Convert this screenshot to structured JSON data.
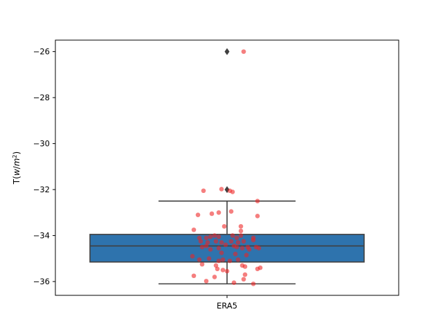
{
  "chart_data": {
    "type": "box",
    "categories": [
      "ERA5"
    ],
    "ylabel": "T(w/m²)",
    "ylabel_parts": [
      "T(",
      "w",
      "/",
      "m",
      "2",
      ")"
    ],
    "xlabel": "",
    "title": "",
    "ylim": [
      -36.6,
      -25.5
    ],
    "yticks": [
      -36,
      -34,
      -32,
      -30,
      -28,
      -26
    ],
    "ytick_labels": [
      "−36",
      "−34",
      "−32",
      "−30",
      "−28",
      "−26"
    ],
    "grid": false,
    "box": {
      "category": "ERA5",
      "q1": -35.15,
      "median": -34.45,
      "q3": -33.95,
      "whisker_low": -36.1,
      "whisker_high": -32.5,
      "outliers": [
        -26.0,
        -32.0
      ],
      "box_color": "#2e73ad",
      "line_color": "#3f3f3f"
    },
    "strip_color": "#ee2222",
    "strip_points": [
      {
        "x": 0.12,
        "y": -26.0
      },
      {
        "x": -0.17,
        "y": -32.05
      },
      {
        "x": -0.04,
        "y": -31.98
      },
      {
        "x": 0.02,
        "y": -32.05
      },
      {
        "x": 0.04,
        "y": -32.1
      },
      {
        "x": 0.22,
        "y": -32.5
      },
      {
        "x": -0.21,
        "y": -33.1
      },
      {
        "x": -0.11,
        "y": -33.05
      },
      {
        "x": -0.06,
        "y": -33.0
      },
      {
        "x": 0.03,
        "y": -32.95
      },
      {
        "x": 0.22,
        "y": -33.15
      },
      {
        "x": -0.02,
        "y": -33.6
      },
      {
        "x": 0.1,
        "y": -33.6
      },
      {
        "x": 0.1,
        "y": -33.8
      },
      {
        "x": -0.24,
        "y": -33.75
      },
      {
        "x": -0.2,
        "y": -34.1
      },
      {
        "x": -0.15,
        "y": -34.1
      },
      {
        "x": -0.12,
        "y": -34.05
      },
      {
        "x": -0.09,
        "y": -34.0
      },
      {
        "x": -0.06,
        "y": -34.05
      },
      {
        "x": 0.04,
        "y": -34.0
      },
      {
        "x": 0.07,
        "y": -34.1
      },
      {
        "x": 0.1,
        "y": -34.0
      },
      {
        "x": 0.19,
        "y": -34.1
      },
      {
        "x": 0.19,
        "y": -34.2
      },
      {
        "x": -0.19,
        "y": -34.25
      },
      {
        "x": -0.14,
        "y": -34.3
      },
      {
        "x": -0.08,
        "y": -34.25
      },
      {
        "x": -0.04,
        "y": -34.3
      },
      {
        "x": 0.03,
        "y": -34.25
      },
      {
        "x": 0.08,
        "y": -34.3
      },
      {
        "x": 0.12,
        "y": -34.25
      },
      {
        "x": -0.18,
        "y": -34.5
      },
      {
        "x": -0.15,
        "y": -34.45
      },
      {
        "x": -0.12,
        "y": -34.6
      },
      {
        "x": -0.06,
        "y": -34.55
      },
      {
        "x": -0.01,
        "y": -34.4
      },
      {
        "x": 0.05,
        "y": -34.45
      },
      {
        "x": 0.07,
        "y": -34.5
      },
      {
        "x": 0.11,
        "y": -34.55
      },
      {
        "x": 0.15,
        "y": -34.5
      },
      {
        "x": 0.16,
        "y": -34.6
      },
      {
        "x": 0.21,
        "y": -34.5
      },
      {
        "x": 0.23,
        "y": -34.55
      },
      {
        "x": -0.04,
        "y": -34.75
      },
      {
        "x": 0.06,
        "y": -34.8
      },
      {
        "x": -0.25,
        "y": -34.9
      },
      {
        "x": 0.14,
        "y": -34.85
      },
      {
        "x": -0.2,
        "y": -35.05
      },
      {
        "x": -0.13,
        "y": -35.0
      },
      {
        "x": -0.06,
        "y": -35.1
      },
      {
        "x": -0.03,
        "y": -35.05
      },
      {
        "x": 0.02,
        "y": -35.1
      },
      {
        "x": 0.08,
        "y": -35.05
      },
      {
        "x": -0.18,
        "y": -35.25
      },
      {
        "x": -0.08,
        "y": -35.3
      },
      {
        "x": 0.11,
        "y": -35.3
      },
      {
        "x": 0.13,
        "y": -35.35
      },
      {
        "x": -0.07,
        "y": -35.45
      },
      {
        "x": -0.03,
        "y": -35.5
      },
      {
        "x": 0.0,
        "y": -35.55
      },
      {
        "x": 0.22,
        "y": -35.45
      },
      {
        "x": 0.24,
        "y": -35.4
      },
      {
        "x": -0.24,
        "y": -35.75
      },
      {
        "x": -0.09,
        "y": -35.8
      },
      {
        "x": 0.13,
        "y": -35.7
      },
      {
        "x": -0.15,
        "y": -35.98
      },
      {
        "x": 0.05,
        "y": -36.05
      },
      {
        "x": 0.12,
        "y": -35.9
      },
      {
        "x": 0.19,
        "y": -36.1
      }
    ]
  }
}
